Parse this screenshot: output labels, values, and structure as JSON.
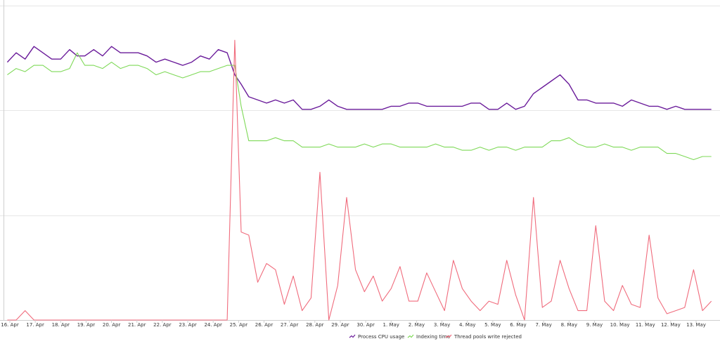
{
  "chart_data": {
    "type": "line",
    "title": "",
    "xlabel": "",
    "ylabel": "",
    "grid": true,
    "legend_position": "bottom-center",
    "ylim": [
      0,
      100
    ],
    "x_tick_labels": [
      "16. Apr",
      "17. Apr",
      "18. Apr",
      "19. Apr",
      "20. Apr",
      "21. Apr",
      "22. Apr",
      "23. Apr",
      "24. Apr",
      "25. Apr",
      "26. Apr",
      "27. Apr",
      "28. Apr",
      "29. Apr",
      "30. Apr",
      "1. May",
      "2. May",
      "3. May",
      "4. May",
      "5. May",
      "6. May",
      "7. May",
      "8. May",
      "9. May",
      "10. May",
      "11. May",
      "12. May",
      "13. May"
    ],
    "x_days": [
      0,
      27.4
    ],
    "series": [
      {
        "name": "Process CPU usage",
        "color": "#6a1b9a",
        "x": [
          -0.1,
          0.25,
          0.6,
          0.95,
          1.3,
          1.65,
          2.0,
          2.35,
          2.65,
          2.95,
          3.3,
          3.65,
          4.0,
          4.35,
          4.7,
          5.05,
          5.4,
          5.75,
          6.1,
          6.45,
          6.8,
          7.15,
          7.5,
          7.85,
          8.2,
          8.55,
          8.85,
          9.1,
          9.4,
          9.75,
          10.1,
          10.45,
          10.8,
          11.15,
          11.5,
          11.85,
          12.2,
          12.55,
          12.9,
          13.25,
          13.6,
          13.95,
          14.3,
          14.65,
          15.0,
          15.35,
          15.7,
          16.05,
          16.4,
          16.75,
          17.1,
          17.45,
          17.8,
          18.15,
          18.5,
          18.85,
          19.2,
          19.55,
          19.9,
          20.25,
          20.6,
          20.95,
          21.3,
          21.65,
          22.0,
          22.35,
          22.7,
          23.05,
          23.4,
          23.75,
          24.1,
          24.45,
          24.8,
          25.15,
          25.5,
          25.85,
          26.2,
          26.55,
          26.9,
          27.25,
          27.6
        ],
        "values": [
          82,
          85,
          83,
          87,
          85,
          83,
          83,
          86,
          84,
          84,
          86,
          84,
          87,
          85,
          85,
          85,
          84,
          82,
          83,
          82,
          81,
          82,
          84,
          83,
          86,
          85,
          78,
          75,
          71,
          70,
          69,
          70,
          69,
          70,
          67,
          67,
          68,
          70,
          68,
          67,
          67,
          67,
          67,
          67,
          68,
          68,
          69,
          69,
          68,
          68,
          68,
          68,
          68,
          69,
          69,
          67,
          67,
          69,
          67,
          68,
          72,
          74,
          76,
          78,
          75,
          70,
          70,
          69,
          69,
          69,
          68,
          70,
          69,
          68,
          68,
          67,
          68,
          67,
          67,
          67,
          67
        ]
      },
      {
        "name": "Indexing time",
        "color": "#7ed957",
        "x": [
          -0.1,
          0.25,
          0.6,
          0.95,
          1.3,
          1.65,
          2.0,
          2.35,
          2.65,
          2.95,
          3.3,
          3.65,
          4.0,
          4.35,
          4.7,
          5.05,
          5.4,
          5.75,
          6.1,
          6.45,
          6.8,
          7.15,
          7.5,
          7.85,
          8.2,
          8.55,
          8.85,
          9.1,
          9.4,
          9.75,
          10.1,
          10.45,
          10.8,
          11.15,
          11.5,
          11.85,
          12.2,
          12.55,
          12.9,
          13.25,
          13.6,
          13.95,
          14.3,
          14.65,
          15.0,
          15.35,
          15.7,
          16.05,
          16.4,
          16.75,
          17.1,
          17.45,
          17.8,
          18.15,
          18.5,
          18.85,
          19.2,
          19.55,
          19.9,
          20.25,
          20.6,
          20.95,
          21.3,
          21.65,
          22.0,
          22.35,
          22.7,
          23.05,
          23.4,
          23.75,
          24.1,
          24.45,
          24.8,
          25.15,
          25.5,
          25.85,
          26.2,
          26.55,
          26.9,
          27.25,
          27.6
        ],
        "values": [
          78,
          80,
          79,
          81,
          81,
          79,
          79,
          80,
          85,
          81,
          81,
          80,
          82,
          80,
          81,
          81,
          80,
          78,
          79,
          78,
          77,
          78,
          79,
          79,
          80,
          81,
          81,
          68,
          57,
          57,
          57,
          58,
          57,
          57,
          55,
          55,
          55,
          56,
          55,
          55,
          55,
          56,
          55,
          56,
          56,
          55,
          55,
          55,
          55,
          56,
          55,
          55,
          54,
          54,
          55,
          54,
          55,
          55,
          54,
          55,
          55,
          55,
          57,
          57,
          58,
          56,
          55,
          55,
          56,
          55,
          55,
          54,
          55,
          55,
          55,
          53,
          53,
          52,
          51,
          52,
          52
        ]
      },
      {
        "name": "Thread pools write rejected",
        "color": "#f06b7c",
        "x": [
          -0.1,
          0.25,
          0.6,
          0.95,
          1.3,
          1.65,
          2.0,
          2.35,
          2.65,
          2.95,
          3.3,
          3.65,
          4.0,
          4.35,
          4.7,
          5.05,
          5.4,
          5.75,
          6.1,
          6.45,
          6.8,
          7.15,
          7.5,
          7.85,
          8.2,
          8.55,
          8.85,
          9.1,
          9.4,
          9.75,
          10.1,
          10.45,
          10.8,
          11.15,
          11.5,
          11.85,
          12.2,
          12.55,
          12.9,
          13.25,
          13.6,
          13.95,
          14.3,
          14.65,
          15.0,
          15.35,
          15.7,
          16.05,
          16.4,
          16.75,
          17.1,
          17.45,
          17.8,
          18.15,
          18.5,
          18.85,
          19.2,
          19.55,
          19.9,
          20.25,
          20.6,
          20.95,
          21.3,
          21.65,
          22.0,
          22.35,
          22.7,
          23.05,
          23.4,
          23.75,
          24.1,
          24.45,
          24.8,
          25.15,
          25.5,
          25.85,
          26.2,
          26.55,
          26.9,
          27.25,
          27.6
        ],
        "values": [
          0,
          0,
          3,
          0,
          0,
          0,
          0,
          0,
          0,
          0,
          0,
          0,
          0,
          0,
          0,
          0,
          0,
          0,
          0,
          0,
          0,
          0,
          0,
          0,
          0,
          0,
          89,
          28,
          27,
          12,
          18,
          16,
          5,
          14,
          3,
          7,
          47,
          0,
          11,
          39,
          16,
          9,
          14,
          6,
          10,
          17,
          6,
          6,
          15,
          9,
          3,
          19,
          10,
          6,
          3,
          6,
          5,
          19,
          8,
          0,
          39,
          4,
          6,
          19,
          10,
          3,
          3,
          30,
          6,
          3,
          11,
          5,
          4,
          27,
          7,
          2,
          3,
          4,
          16,
          3,
          6
        ]
      }
    ]
  }
}
